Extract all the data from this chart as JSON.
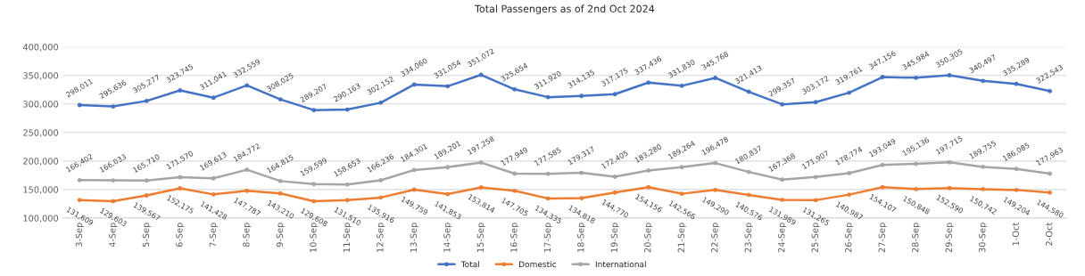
{
  "chart_data": {
    "type": "line",
    "title": "Total Passengers as of 2nd Oct 2024",
    "categories": [
      "3-Sep",
      "4-Sep",
      "5-Sep",
      "6-Sep",
      "7-Sep",
      "8-Sep",
      "9-Sep",
      "10-Sep",
      "11-Sep",
      "12-Sep",
      "13-Sep",
      "14-Sep",
      "15-Sep",
      "16-Sep",
      "17-Sep",
      "18-Sep",
      "19-Sep",
      "20-Sep",
      "21-Sep",
      "22-Sep",
      "23-Sep",
      "24-Sep",
      "25-Sep",
      "26-Sep",
      "27-Sep",
      "28-Sep",
      "29-Sep",
      "30-Sep",
      "1-Oct",
      "2-Oct"
    ],
    "series": [
      {
        "name": "Total",
        "color": "#4472c4",
        "values": [
          298011,
          295636,
          305277,
          323745,
          311041,
          332559,
          308025,
          289207,
          290163,
          302152,
          334060,
          331054,
          351072,
          325654,
          311920,
          314135,
          317175,
          337436,
          331830,
          345768,
          321413,
          299357,
          303172,
          319761,
          347156,
          345984,
          350305,
          340497,
          335289,
          322543
        ],
        "value_labels": [
          "298,011",
          "295,636",
          "305,277",
          "323,745",
          "311,041",
          "332,559",
          "308,025",
          "289,207",
          "290,163",
          "302,152",
          "334,060",
          "331,054",
          "351,072",
          "325,654",
          "311,920",
          "314,135",
          "317,175",
          "337,436",
          "331,830",
          "345,768",
          "321,413",
          "299,357",
          "303,172",
          "319,761",
          "347,156",
          "345,984",
          "350,305",
          "340,497",
          "335,289",
          "322,543"
        ]
      },
      {
        "name": "Domestic",
        "color": "#ed7d31",
        "values": [
          131609,
          129603,
          139567,
          152175,
          141428,
          147787,
          143210,
          129608,
          131510,
          135916,
          149759,
          141853,
          153814,
          147705,
          134335,
          134818,
          144770,
          154156,
          142566,
          149290,
          140576,
          131989,
          131265,
          140987,
          154107,
          150848,
          152590,
          150742,
          149204,
          144580
        ],
        "value_labels": [
          "131,609",
          "129,603",
          "139,567",
          "152,175",
          "141,428",
          "147,787",
          "143,210",
          "129,608",
          "131,510",
          "135,916",
          "149,759",
          "141,853",
          "153,814",
          "147,705",
          "134,335",
          "134,818",
          "144,770",
          "154,156",
          "142,566",
          "149,290",
          "140,576",
          "131,989",
          "131,265",
          "140,987",
          "154,107",
          "150,848",
          "152,590",
          "150,742",
          "149,204",
          "144,580"
        ]
      },
      {
        "name": "International",
        "color": "#a5a5a5",
        "values": [
          166402,
          166033,
          165710,
          171570,
          169613,
          184772,
          164815,
          159599,
          158653,
          166236,
          184301,
          189201,
          197258,
          177949,
          177585,
          179317,
          172405,
          183280,
          189264,
          196478,
          180837,
          167368,
          171907,
          178774,
          193049,
          195136,
          197715,
          189755,
          186085,
          177963
        ],
        "value_labels": [
          "166,402",
          "166,033",
          "165,710",
          "171,570",
          "169,613",
          "184,772",
          "164,815",
          "159,599",
          "158,653",
          "166,236",
          "184,301",
          "189,201",
          "197,258",
          "177,949",
          "177,585",
          "179,317",
          "172,405",
          "183,280",
          "189,264",
          "196,478",
          "180,837",
          "167,368",
          "171,907",
          "178,774",
          "193,049",
          "195,136",
          "197,715",
          "189,755",
          "186,085",
          "177,963"
        ]
      }
    ],
    "ylim": [
      100000,
      400000
    ],
    "yticks": [
      {
        "value": 100000,
        "label": "100,000"
      },
      {
        "value": 150000,
        "label": "150,000"
      },
      {
        "value": 200000,
        "label": "200,000"
      },
      {
        "value": 250000,
        "label": "250,000"
      },
      {
        "value": 300000,
        "label": "300,000"
      },
      {
        "value": 350000,
        "label": "350,000"
      },
      {
        "value": 400000,
        "label": "400,000"
      }
    ],
    "grid": "y",
    "legend": "bottom",
    "marker": "circle",
    "line_style": "solid"
  }
}
